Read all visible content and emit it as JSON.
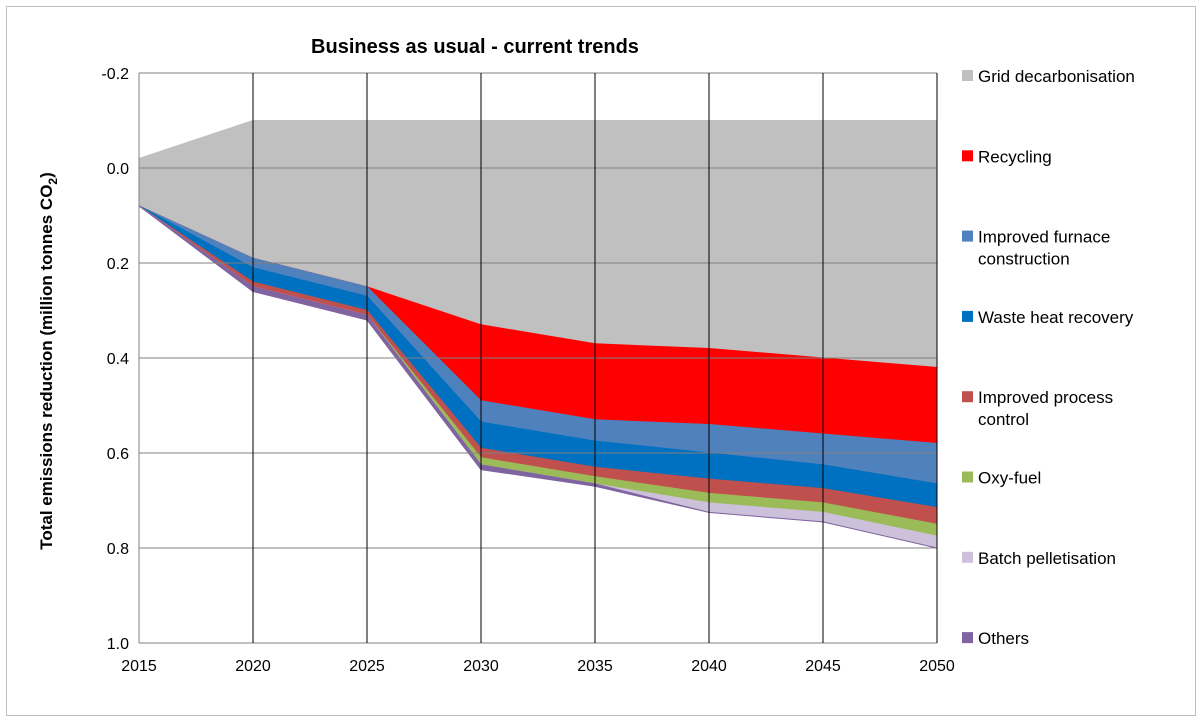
{
  "chart_data": {
    "type": "area",
    "title": "Business as usual - current trends",
    "ylabel": "Total emissions reduction (million tonnes CO",
    "ylabel_subscript": "2",
    "ylabel_suffix": ")",
    "xlabel": "",
    "ylim": [
      -0.2,
      1.0
    ],
    "y_inverted": true,
    "y_ticks": [
      "-0.2",
      "0.0",
      "0.2",
      "0.4",
      "0.6",
      "0.8",
      "1.0"
    ],
    "y_tick_values": [
      -0.2,
      0.0,
      0.2,
      0.4,
      0.6,
      0.8,
      1.0
    ],
    "categories": [
      "2015",
      "2020",
      "2025",
      "2030",
      "2035",
      "2040",
      "2045",
      "2050"
    ],
    "grid": true,
    "legend_position": "right",
    "series": [
      {
        "name": "Grid decarbonisation",
        "color": "#c0c0c0",
        "values": [
          0.1,
          0.29,
          0.35,
          0.43,
          0.47,
          0.48,
          0.5,
          0.52
        ]
      },
      {
        "name": "Recycling",
        "color": "#ff0000",
        "values": [
          0.0,
          0.0,
          0.0,
          0.16,
          0.16,
          0.16,
          0.16,
          0.16
        ]
      },
      {
        "name": "Improved furnace construction",
        "color": "#4f81bd",
        "values": [
          0.0,
          0.02,
          0.02,
          0.045,
          0.045,
          0.06,
          0.065,
          0.085
        ]
      },
      {
        "name": "Waste heat recovery",
        "color": "#0070c0",
        "values": [
          0.0,
          0.03,
          0.03,
          0.055,
          0.055,
          0.055,
          0.05,
          0.05
        ]
      },
      {
        "name": "Improved process control",
        "color": "#c0504d",
        "values": [
          0.0,
          0.01,
          0.01,
          0.02,
          0.02,
          0.03,
          0.03,
          0.035
        ]
      },
      {
        "name": "Oxy-fuel",
        "color": "#9bbb59",
        "values": [
          0.0,
          0.0,
          0.0,
          0.015,
          0.015,
          0.02,
          0.02,
          0.025
        ]
      },
      {
        "name": "Batch pelletisation",
        "color": "#ccc0da",
        "values": [
          0.0,
          0.0,
          0.0,
          0.0,
          0.0,
          0.02,
          0.02,
          0.025
        ]
      },
      {
        "name": "Others",
        "color": "#8064a2",
        "values": [
          0.0,
          0.01,
          0.01,
          0.01,
          0.005,
          0.0,
          0.0,
          0.0
        ]
      }
    ],
    "series_baseline": [
      -0.02,
      -0.1,
      -0.1,
      -0.1,
      -0.1,
      -0.1,
      -0.1,
      -0.1
    ]
  }
}
